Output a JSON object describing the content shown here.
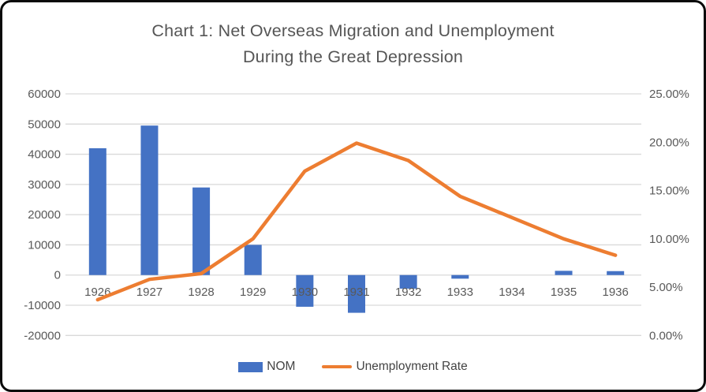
{
  "chart_data": {
    "type": "combo",
    "title_line1": "Chart 1: Net Overseas Migration and Unemployment",
    "title_line2": "During the Great Depression",
    "categories": [
      "1926",
      "1927",
      "1928",
      "1929",
      "1930",
      "1931",
      "1932",
      "1933",
      "1934",
      "1935",
      "1936"
    ],
    "series": [
      {
        "name": "NOM",
        "type": "bar",
        "axis": "left",
        "color": "#4472C4",
        "values": [
          42000,
          49500,
          29000,
          10000,
          -10500,
          -12500,
          -4500,
          -1200,
          0,
          1400,
          1300
        ]
      },
      {
        "name": "Unemployment Rate",
        "type": "line",
        "axis": "right",
        "color": "#ED7D31",
        "values": [
          3.7,
          5.8,
          6.4,
          10.0,
          17.0,
          19.9,
          18.1,
          14.4,
          12.2,
          10.0,
          8.3
        ]
      }
    ],
    "left_axis": {
      "min": -20000,
      "max": 60000,
      "step": 10000,
      "ticks": [
        "60000",
        "50000",
        "40000",
        "30000",
        "20000",
        "10000",
        "0",
        "-10000",
        "-20000"
      ]
    },
    "right_axis": {
      "min": 0,
      "max": 25,
      "step": 5,
      "ticks": [
        "25.00%",
        "20.00%",
        "15.00%",
        "10.00%",
        "5.00%",
        "0.00%"
      ]
    },
    "gridline_color": "#D9D9D9",
    "text_color": "#595959",
    "legend": [
      {
        "label": "NOM",
        "swatch": "bar",
        "color": "#4472C4"
      },
      {
        "label": "Unemployment Rate",
        "swatch": "line",
        "color": "#ED7D31"
      }
    ]
  }
}
